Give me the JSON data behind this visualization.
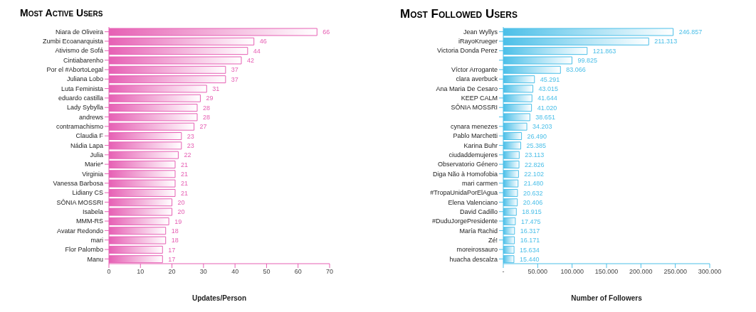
{
  "chart_data": [
    {
      "type": "bar",
      "orientation": "horizontal",
      "title": "Most Active Users",
      "xlabel": "Updates/Person",
      "categories": [
        "Niara de Oliveira",
        "Zumbi Ecoanarquista",
        "Ativismo de Sofá",
        "Cintiabarenho",
        "Por el #AbortoLegal",
        "Juliana Lobo",
        "Luta Feminista",
        "eduardo castilla",
        "Lady Sybylla",
        "andrews",
        "contramachismo",
        "Claudia F",
        "Nádia Lapa",
        "Julia",
        "Marie*",
        "Virginia",
        "Vanessa Barbosa",
        "Lidiany CS",
        "SÔNIA MOSSRI",
        "Isabela",
        "MMM-RS",
        "Avatar Redondo",
        "mari",
        "Flor Palombo",
        "Manu"
      ],
      "values": [
        66,
        46,
        44,
        42,
        37,
        37,
        31,
        29,
        28,
        28,
        27,
        23,
        23,
        22,
        21,
        21,
        21,
        21,
        20,
        20,
        19,
        18,
        18,
        17,
        17
      ],
      "color": "#e660b4",
      "xlim": [
        0,
        70
      ],
      "xticks": [
        0,
        10,
        20,
        30,
        40,
        50,
        60,
        70
      ],
      "data_labels": true,
      "grid": false,
      "legend": false
    },
    {
      "type": "bar",
      "orientation": "horizontal",
      "title": "Most Followed Users",
      "xlabel": "Number of Followers",
      "categories": [
        "Jean Wyllys",
        "iRayoKrueger",
        "Victoria Donda Perez",
        null,
        "Víctor Arrogante",
        "clara averbuck",
        "Ana Maria De Cesaro",
        "KEEP CALM",
        "SÔNIA MOSSRI",
        null,
        "cynara menezes",
        "Pablo Marchetti",
        "Karina Buhr",
        "ciudaddemujeres",
        "Observatorio Género",
        "Diga Não à Homofobia",
        "mari carmen",
        "#TropaUnidaPorElAgua",
        "Elena Valenciano",
        "David Cadillo",
        "#DuduJorgePresidente",
        "María Rachid",
        "Zé!",
        "moreirossauro",
        "huacha descalza"
      ],
      "values": [
        246857,
        211313,
        121863,
        99825,
        83066,
        45291,
        43015,
        41644,
        41020,
        38651,
        34203,
        26490,
        25385,
        23113,
        22826,
        22102,
        21480,
        20632,
        20406,
        18915,
        17475,
        16317,
        16171,
        15634,
        15440
      ],
      "value_labels": [
        "246.857",
        "211.313",
        "121.863",
        "99.825",
        "83.066",
        "45.291",
        "43.015",
        "41.644",
        "41.020",
        "38.651",
        "34.203",
        "26.490",
        "25.385",
        "23.113",
        "22.826",
        "22.102",
        "21.480",
        "20.632",
        "20.406",
        "18.915",
        "17.475",
        "16.317",
        "16.171",
        "15.634",
        "15.440"
      ],
      "color": "#4bbfe8",
      "xlim": [
        0,
        300000
      ],
      "xticks": [
        {
          "value": 0,
          "label": "-"
        },
        {
          "value": 50000,
          "label": "50.000"
        },
        {
          "value": 100000,
          "label": "100.000"
        },
        {
          "value": 150000,
          "label": "150.000"
        },
        {
          "value": 200000,
          "label": "200.000"
        },
        {
          "value": 250000,
          "label": "250.000"
        },
        {
          "value": 300000,
          "label": "300.000"
        }
      ],
      "grid": false,
      "legend": false
    }
  ]
}
